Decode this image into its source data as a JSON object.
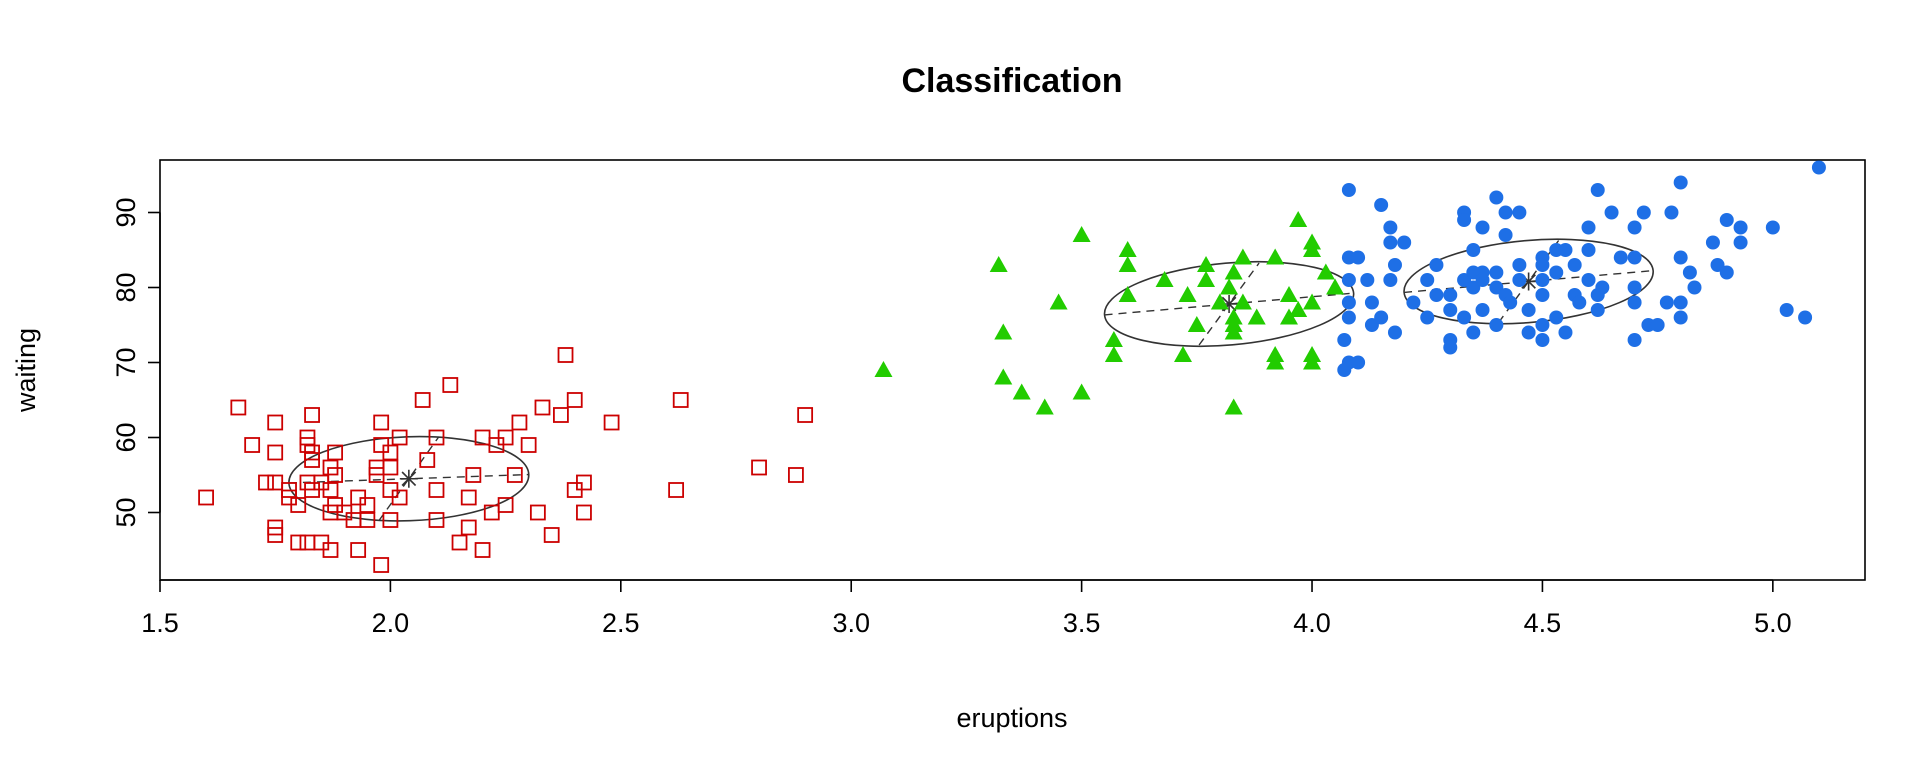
{
  "chart_data": {
    "type": "scatter",
    "title": "Classification",
    "xlabel": "eruptions",
    "ylabel": "waiting",
    "xlim": [
      1.5,
      5.2
    ],
    "ylim": [
      41,
      97
    ],
    "x_ticks": [
      1.5,
      2.0,
      2.5,
      3.0,
      3.5,
      4.0,
      4.5,
      5.0
    ],
    "x_tick_labels": [
      "1.5",
      "2.0",
      "2.5",
      "3.0",
      "3.5",
      "4.0",
      "4.5",
      "5.0"
    ],
    "y_ticks": [
      50,
      60,
      70,
      80,
      90
    ],
    "y_tick_labels": [
      "50",
      "60",
      "70",
      "80",
      "90"
    ],
    "grid": false,
    "legend": "none",
    "series": [
      {
        "marker": "open-square",
        "color": "#cc0000",
        "center": [
          2.04,
          54.5
        ],
        "points": [
          [
            1.6,
            52
          ],
          [
            1.67,
            64
          ],
          [
            1.7,
            59
          ],
          [
            1.73,
            54
          ],
          [
            1.75,
            62
          ],
          [
            1.75,
            58
          ],
          [
            1.75,
            54
          ],
          [
            1.75,
            48
          ],
          [
            1.75,
            47
          ],
          [
            1.78,
            53
          ],
          [
            1.78,
            52
          ],
          [
            1.8,
            51
          ],
          [
            1.8,
            46
          ],
          [
            1.82,
            60
          ],
          [
            1.82,
            59
          ],
          [
            1.82,
            54
          ],
          [
            1.82,
            46
          ],
          [
            1.83,
            63
          ],
          [
            1.83,
            58
          ],
          [
            1.83,
            57
          ],
          [
            1.83,
            53
          ],
          [
            1.85,
            54
          ],
          [
            1.85,
            46
          ],
          [
            1.87,
            56
          ],
          [
            1.87,
            53
          ],
          [
            1.87,
            50
          ],
          [
            1.87,
            45
          ],
          [
            1.88,
            58
          ],
          [
            1.88,
            55
          ],
          [
            1.88,
            51
          ],
          [
            1.9,
            50
          ],
          [
            1.92,
            49
          ],
          [
            1.93,
            45
          ],
          [
            1.93,
            52
          ],
          [
            1.95,
            49
          ],
          [
            1.95,
            51
          ],
          [
            1.97,
            56
          ],
          [
            1.97,
            55
          ],
          [
            1.98,
            62
          ],
          [
            1.98,
            59
          ],
          [
            1.98,
            43
          ],
          [
            2.0,
            58
          ],
          [
            2.0,
            56
          ],
          [
            2.0,
            53
          ],
          [
            2.0,
            49
          ],
          [
            2.02,
            60
          ],
          [
            2.02,
            52
          ],
          [
            2.07,
            65
          ],
          [
            2.08,
            57
          ],
          [
            2.1,
            60
          ],
          [
            2.1,
            53
          ],
          [
            2.1,
            49
          ],
          [
            2.13,
            67
          ],
          [
            2.15,
            46
          ],
          [
            2.17,
            52
          ],
          [
            2.17,
            48
          ],
          [
            2.18,
            55
          ],
          [
            2.2,
            60
          ],
          [
            2.2,
            45
          ],
          [
            2.22,
            50
          ],
          [
            2.23,
            59
          ],
          [
            2.25,
            60
          ],
          [
            2.25,
            51
          ],
          [
            2.27,
            55
          ],
          [
            2.28,
            62
          ],
          [
            2.3,
            59
          ],
          [
            2.32,
            50
          ],
          [
            2.33,
            64
          ],
          [
            2.35,
            47
          ],
          [
            2.37,
            63
          ],
          [
            2.38,
            71
          ],
          [
            2.4,
            65
          ],
          [
            2.4,
            53
          ],
          [
            2.42,
            54
          ],
          [
            2.42,
            50
          ],
          [
            2.48,
            62
          ],
          [
            2.62,
            53
          ],
          [
            2.63,
            65
          ],
          [
            2.8,
            56
          ],
          [
            2.88,
            55
          ],
          [
            2.9,
            63
          ]
        ]
      },
      {
        "marker": "filled-triangle",
        "color": "#22cc00",
        "center": [
          3.82,
          77.8
        ],
        "points": [
          [
            3.07,
            69
          ],
          [
            3.32,
            83
          ],
          [
            3.33,
            74
          ],
          [
            3.33,
            68
          ],
          [
            3.37,
            66
          ],
          [
            3.42,
            64
          ],
          [
            3.45,
            78
          ],
          [
            3.5,
            87
          ],
          [
            3.5,
            66
          ],
          [
            3.57,
            73
          ],
          [
            3.57,
            71
          ],
          [
            3.6,
            85
          ],
          [
            3.6,
            83
          ],
          [
            3.6,
            79
          ],
          [
            3.68,
            81
          ],
          [
            3.72,
            71
          ],
          [
            3.73,
            79
          ],
          [
            3.75,
            75
          ],
          [
            3.77,
            83
          ],
          [
            3.77,
            81
          ],
          [
            3.8,
            78
          ],
          [
            3.82,
            80
          ],
          [
            3.83,
            82
          ],
          [
            3.83,
            76
          ],
          [
            3.83,
            75
          ],
          [
            3.83,
            74
          ],
          [
            3.83,
            64
          ],
          [
            3.85,
            84
          ],
          [
            3.85,
            78
          ],
          [
            3.88,
            76
          ],
          [
            3.92,
            84
          ],
          [
            3.92,
            71
          ],
          [
            3.92,
            70
          ],
          [
            3.95,
            79
          ],
          [
            3.95,
            76
          ],
          [
            3.97,
            89
          ],
          [
            3.97,
            77
          ],
          [
            4.0,
            86
          ],
          [
            4.0,
            85
          ],
          [
            4.0,
            78
          ],
          [
            4.0,
            71
          ],
          [
            4.0,
            70
          ],
          [
            4.03,
            82
          ],
          [
            4.05,
            80
          ]
        ]
      },
      {
        "marker": "filled-circle",
        "color": "#1e6fe6",
        "center": [
          4.47,
          80.8
        ],
        "points": [
          [
            4.07,
            73
          ],
          [
            4.07,
            69
          ],
          [
            4.08,
            93
          ],
          [
            4.08,
            84
          ],
          [
            4.08,
            81
          ],
          [
            4.08,
            78
          ],
          [
            4.08,
            76
          ],
          [
            4.08,
            70
          ],
          [
            4.1,
            84
          ],
          [
            4.1,
            70
          ],
          [
            4.12,
            81
          ],
          [
            4.13,
            78
          ],
          [
            4.13,
            75
          ],
          [
            4.15,
            91
          ],
          [
            4.15,
            76
          ],
          [
            4.17,
            88
          ],
          [
            4.17,
            86
          ],
          [
            4.17,
            81
          ],
          [
            4.18,
            74
          ],
          [
            4.18,
            83
          ],
          [
            4.2,
            86
          ],
          [
            4.22,
            78
          ],
          [
            4.25,
            81
          ],
          [
            4.25,
            76
          ],
          [
            4.27,
            83
          ],
          [
            4.27,
            79
          ],
          [
            4.3,
            79
          ],
          [
            4.3,
            77
          ],
          [
            4.3,
            73
          ],
          [
            4.3,
            72
          ],
          [
            4.33,
            90
          ],
          [
            4.33,
            89
          ],
          [
            4.33,
            81
          ],
          [
            4.33,
            76
          ],
          [
            4.35,
            85
          ],
          [
            4.35,
            82
          ],
          [
            4.35,
            80
          ],
          [
            4.35,
            74
          ],
          [
            4.37,
            88
          ],
          [
            4.37,
            82
          ],
          [
            4.37,
            81
          ],
          [
            4.37,
            77
          ],
          [
            4.4,
            92
          ],
          [
            4.4,
            82
          ],
          [
            4.4,
            80
          ],
          [
            4.4,
            75
          ],
          [
            4.42,
            90
          ],
          [
            4.42,
            87
          ],
          [
            4.42,
            79
          ],
          [
            4.43,
            78
          ],
          [
            4.45,
            90
          ],
          [
            4.45,
            83
          ],
          [
            4.45,
            81
          ],
          [
            4.47,
            77
          ],
          [
            4.47,
            74
          ],
          [
            4.5,
            84
          ],
          [
            4.5,
            83
          ],
          [
            4.5,
            81
          ],
          [
            4.5,
            79
          ],
          [
            4.5,
            75
          ],
          [
            4.5,
            73
          ],
          [
            4.53,
            85
          ],
          [
            4.53,
            82
          ],
          [
            4.53,
            76
          ],
          [
            4.55,
            85
          ],
          [
            4.55,
            74
          ],
          [
            4.57,
            83
          ],
          [
            4.57,
            79
          ],
          [
            4.58,
            78
          ],
          [
            4.6,
            88
          ],
          [
            4.6,
            85
          ],
          [
            4.6,
            81
          ],
          [
            4.62,
            93
          ],
          [
            4.62,
            79
          ],
          [
            4.62,
            77
          ],
          [
            4.63,
            80
          ],
          [
            4.65,
            90
          ],
          [
            4.67,
            84
          ],
          [
            4.7,
            88
          ],
          [
            4.7,
            84
          ],
          [
            4.7,
            80
          ],
          [
            4.7,
            78
          ],
          [
            4.7,
            73
          ],
          [
            4.72,
            90
          ],
          [
            4.73,
            75
          ],
          [
            4.75,
            75
          ],
          [
            4.77,
            78
          ],
          [
            4.78,
            90
          ],
          [
            4.8,
            94
          ],
          [
            4.8,
            84
          ],
          [
            4.8,
            78
          ],
          [
            4.8,
            76
          ],
          [
            4.82,
            82
          ],
          [
            4.83,
            80
          ],
          [
            4.87,
            86
          ],
          [
            4.88,
            83
          ],
          [
            4.9,
            89
          ],
          [
            4.9,
            82
          ],
          [
            4.93,
            88
          ],
          [
            4.93,
            86
          ],
          [
            5.0,
            88
          ],
          [
            5.03,
            77
          ],
          [
            5.07,
            76
          ],
          [
            5.1,
            96
          ]
        ]
      }
    ]
  }
}
